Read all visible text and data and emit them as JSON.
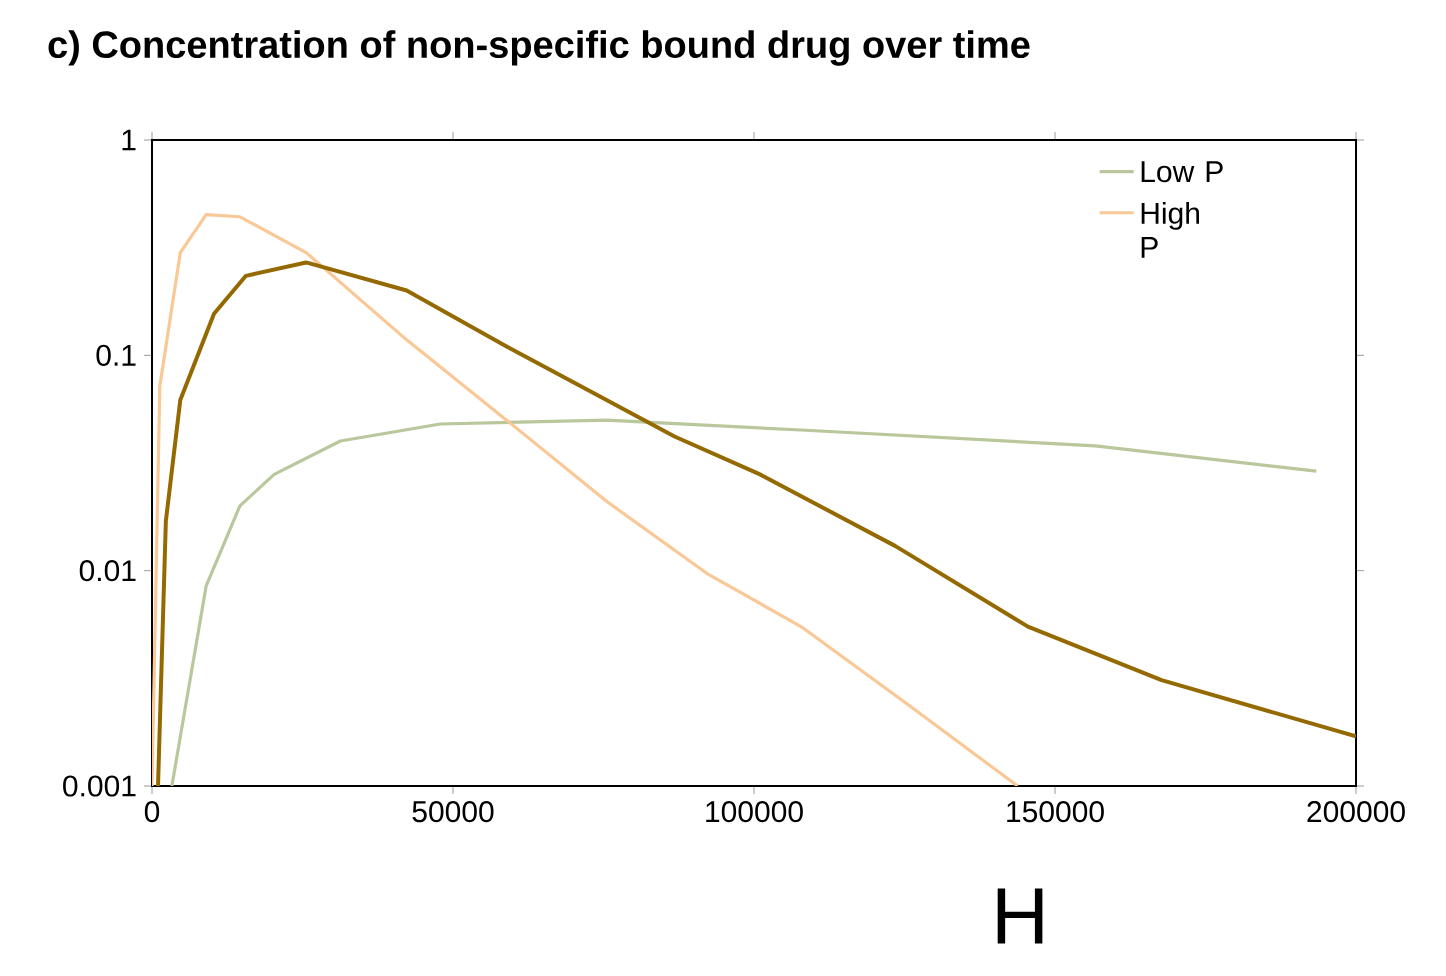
{
  "chart_data": {
    "type": "line",
    "title": "c) Concentration of non-specific bound drug over time",
    "log": "y",
    "xlim": [
      0,
      200000
    ],
    "ylim": [
      0.001,
      1
    ],
    "xticks": [
      0,
      50000,
      100000,
      150000,
      200000
    ],
    "yticks": [
      0.001,
      0.01,
      0.1,
      1
    ],
    "legend": "top right",
    "annotations": [
      "H"
    ],
    "series": [
      {
        "name": "Low P",
        "color": "#b9c79c",
        "x": [
          3300,
          9000,
          14600,
          20300,
          31300,
          47900,
          75500,
          107800,
          156700,
          193400
        ],
        "values": [
          0.001,
          0.0085,
          0.02,
          0.028,
          0.04,
          0.048,
          0.05,
          0.045,
          0.038,
          0.029
        ]
      },
      {
        "name": "High P",
        "color": "#f9c896",
        "x": [
          0,
          1300,
          4700,
          9000,
          14600,
          25600,
          42300,
          58900,
          75500,
          92200,
          107800,
          124600,
          143800
        ],
        "values": [
          0.001,
          0.072,
          0.3,
          0.45,
          0.44,
          0.3,
          0.118,
          0.05,
          0.021,
          0.0097,
          0.0055,
          0.0025,
          0.001
        ]
      },
      {
        "color": "#946a00",
        "x": [
          1000,
          2300,
          4700,
          10300,
          15600,
          25600,
          42300,
          58900,
          75500,
          86800,
          101000,
          123500,
          145500,
          167700,
          200000
        ],
        "values": [
          0.001,
          0.017,
          0.062,
          0.156,
          0.234,
          0.27,
          0.2,
          0.11,
          0.062,
          0.042,
          0.028,
          0.013,
          0.0055,
          0.0031,
          0.0017
        ]
      }
    ]
  }
}
